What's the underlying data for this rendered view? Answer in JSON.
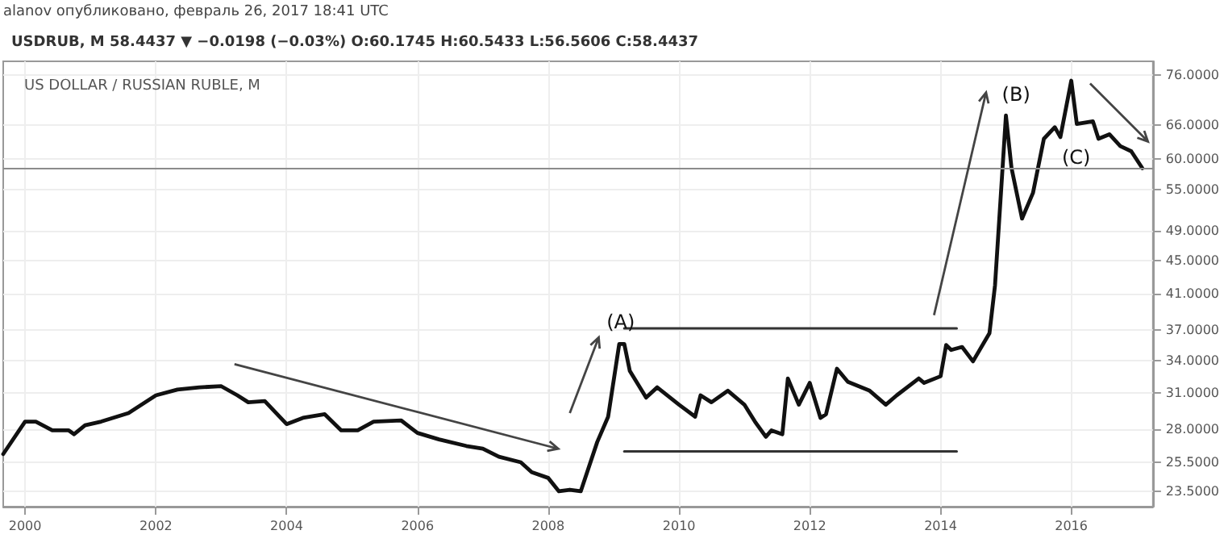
{
  "chart_data": {
    "type": "line",
    "title": "US DOLLAR / RUSSIAN RUBLE, M",
    "subtitle": "USDRUB, M 58.4437 ▼ −0.0198 (−0.03%) O:60.1745 H:60.5433 L:56.5606 C:58.4437",
    "annotations": [
      "alanov опубликовано, февраль 26, 2017 18:41 UTC",
      "(A)",
      "(B)",
      "(C)"
    ],
    "log": "y",
    "grid": true,
    "marker": "none",
    "xlim": [
      "1999-09",
      "2017-04"
    ],
    "xticks": [
      "2000",
      "2002",
      "2004",
      "2006",
      "2008",
      "2010",
      "2012",
      "2014",
      "2016"
    ],
    "ylim": [
      22.5,
      79
    ],
    "yticks": [
      {
        "value": 23.5,
        "label": "23.5000"
      },
      {
        "value": 25.5,
        "label": "25.5000"
      },
      {
        "value": 28,
        "label": "28.0000"
      },
      {
        "value": 31,
        "label": "31.0000"
      },
      {
        "value": 34,
        "label": "34.0000"
      },
      {
        "value": 37,
        "label": "37.0000"
      },
      {
        "value": 41,
        "label": "41.0000"
      },
      {
        "value": 45,
        "label": "45.0000"
      },
      {
        "value": 49,
        "label": "49.0000"
      },
      {
        "value": 55,
        "label": "55.0000"
      },
      {
        "value": 60,
        "label": "60.0000"
      },
      {
        "value": 66,
        "label": "66.0000"
      },
      {
        "value": 76,
        "label": "76.0000"
      }
    ],
    "ref_lines": [
      {
        "axis": "y",
        "value": 58.4437,
        "color": "#8c8c8c"
      }
    ],
    "series": [
      {
        "color": "#111111",
        "x": [
          "1999-09",
          "2000-01",
          "2000-03",
          "2000-06",
          "2000-09",
          "2000-10",
          "2000-12",
          "2001-03",
          "2001-08",
          "2002-01",
          "2002-05",
          "2002-09",
          "2003-01",
          "2003-04",
          "2003-06",
          "2003-09",
          "2004-01",
          "2004-04",
          "2004-08",
          "2004-11",
          "2005-02",
          "2005-05",
          "2005-10",
          "2006-01",
          "2006-05",
          "2006-10",
          "2007-01",
          "2007-04",
          "2007-08",
          "2007-10",
          "2008-01",
          "2008-03",
          "2008-05",
          "2008-07",
          "2008-10",
          "2008-12",
          "2009-02",
          "2009-03",
          "2009-04",
          "2009-07",
          "2009-09",
          "2010-01",
          "2010-04",
          "2010-05",
          "2010-07",
          "2010-10",
          "2011-01",
          "2011-03",
          "2011-05",
          "2011-06",
          "2011-08",
          "2011-09",
          "2011-11",
          "2012-01",
          "2012-03",
          "2012-04",
          "2012-06",
          "2012-08",
          "2012-12",
          "2013-03",
          "2013-05",
          "2013-09",
          "2013-10",
          "2014-01",
          "2014-02",
          "2014-03",
          "2014-05",
          "2014-07",
          "2014-10",
          "2014-11",
          "2015-01",
          "2015-02",
          "2015-04",
          "2015-06",
          "2015-08",
          "2015-10",
          "2015-11",
          "2016-01",
          "2016-02",
          "2016-05",
          "2016-06",
          "2016-08",
          "2016-10",
          "2016-12",
          "2017-02"
        ],
        "values": [
          26.1,
          28.6,
          28.6,
          27.9,
          27.9,
          27.6,
          28.3,
          28.6,
          29.3,
          30.8,
          31.3,
          31.5,
          31.6,
          30.8,
          30.2,
          30.3,
          28.4,
          28.9,
          29.2,
          27.9,
          27.9,
          28.6,
          28.7,
          27.7,
          27.2,
          26.7,
          26.5,
          25.9,
          25.5,
          24.8,
          24.4,
          23.5,
          23.6,
          23.5,
          27.0,
          29.0,
          35.6,
          35.6,
          33.0,
          30.6,
          31.5,
          30.0,
          29.0,
          30.8,
          30.2,
          31.2,
          30.0,
          28.6,
          27.4,
          27.9,
          27.6,
          32.3,
          30.0,
          31.9,
          28.9,
          29.2,
          33.2,
          32.0,
          31.2,
          30.0,
          30.8,
          32.3,
          31.9,
          32.5,
          35.5,
          35.0,
          35.3,
          33.9,
          36.7,
          42.0,
          67.8,
          58.5,
          50.7,
          54.5,
          63.5,
          65.6,
          63.8,
          74.8,
          66.2,
          66.7,
          63.5,
          64.3,
          62.2,
          61.3,
          58.4437
        ]
      },
      {
        "color": "#333333",
        "x": [
          "2009-03",
          "2014-04"
        ],
        "values": [
          37.2,
          37.2
        ]
      },
      {
        "color": "#333333",
        "x": [
          "2009-03",
          "2014-04"
        ],
        "values": [
          26.3,
          26.3
        ]
      }
    ]
  }
}
